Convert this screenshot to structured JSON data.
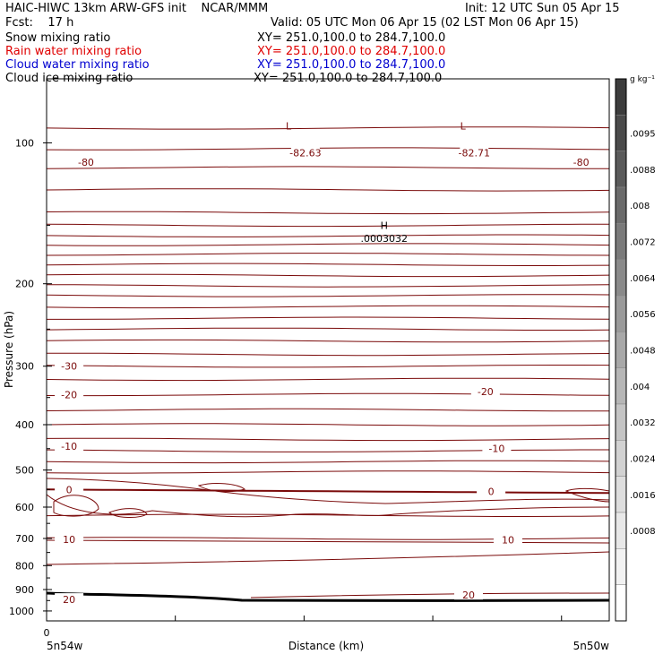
{
  "header": {
    "title_left": "HAIC-HIWC 13km ARW-GFS init    NCAR/MMM",
    "init": "Init: 12 UTC Sun 05 Apr 15",
    "fcst": "Fcst:    17 h",
    "valid": "Valid: 05 UTC Mon 06 Apr 15 (02 LST Mon 06 Apr 15)",
    "fields": [
      {
        "name": "Snow mixing ratio",
        "xy": "XY= 251.0,100.0 to 284.7,100.0",
        "color": "#000000"
      },
      {
        "name": "Rain water mixing ratio",
        "xy": "XY= 251.0,100.0 to 284.7,100.0",
        "color": "#e00000"
      },
      {
        "name": "Cloud water mixing ratio",
        "xy": "XY= 251.0,100.0 to 284.7,100.0",
        "color": "#0000d0"
      },
      {
        "name": "Cloud ice mixing ratio",
        "xy": "XY= 251.0,100.0 to 284.7,100.0",
        "color": "#000000"
      }
    ]
  },
  "chart_data": {
    "type": "contour",
    "xlabel": "Distance (km)",
    "ylabel": "Pressure (hPa)",
    "x_start_label": "0",
    "x_left_label": "5n54w",
    "x_right_label": "5n50w",
    "y_ticks": [
      100,
      200,
      300,
      400,
      500,
      600,
      700,
      800,
      900,
      1000
    ],
    "y_scale": "log",
    "ylim": [
      1050,
      73
    ],
    "contour_color": "#7a0a0a",
    "contour_labels": [
      {
        "text": "-80",
        "x": 0.07,
        "p": 110
      },
      {
        "text": "-82.63",
        "x": 0.46,
        "p": 105
      },
      {
        "text": "-82.71",
        "x": 0.76,
        "p": 105
      },
      {
        "text": "-80",
        "x": 0.95,
        "p": 110
      },
      {
        "text": "-30",
        "x": 0.04,
        "p": 300
      },
      {
        "text": "-20",
        "x": 0.04,
        "p": 345
      },
      {
        "text": "-20",
        "x": 0.78,
        "p": 340
      },
      {
        "text": "-10",
        "x": 0.04,
        "p": 445
      },
      {
        "text": "-10",
        "x": 0.8,
        "p": 450
      },
      {
        "text": "0",
        "x": 0.04,
        "p": 550
      },
      {
        "text": "0",
        "x": 0.79,
        "p": 555
      },
      {
        "text": "10",
        "x": 0.04,
        "p": 703
      },
      {
        "text": "10",
        "x": 0.82,
        "p": 705
      },
      {
        "text": "20",
        "x": 0.04,
        "p": 945
      },
      {
        "text": "20",
        "x": 0.75,
        "p": 925
      }
    ],
    "extrema": [
      {
        "text": "L",
        "x": 0.43,
        "p": 92
      },
      {
        "text": "L",
        "x": 0.74,
        "p": 92
      },
      {
        "text": "H",
        "x": 0.6,
        "p": 150
      },
      {
        "text": ".0003032",
        "x": 0.6,
        "p": 160
      }
    ],
    "colorbar": {
      "unit": "g kg⁻¹",
      "ticks": [
        ".0095",
        ".0088",
        ".008",
        ".0072",
        ".0064",
        ".0056",
        ".0048",
        ".004",
        ".0032",
        ".0024",
        ".0016",
        ".0008"
      ],
      "colors": [
        "#3c3c3c",
        "#4a4a4a",
        "#5a5a5a",
        "#6a6a6a",
        "#7a7a7a",
        "#8a8a8a",
        "#9a9a9a",
        "#a8a8a8",
        "#b6b6b6",
        "#c4c4c4",
        "#d2d2d2",
        "#dedede",
        "#e8e8e8",
        "#f2f2f2",
        "#ffffff"
      ]
    }
  }
}
